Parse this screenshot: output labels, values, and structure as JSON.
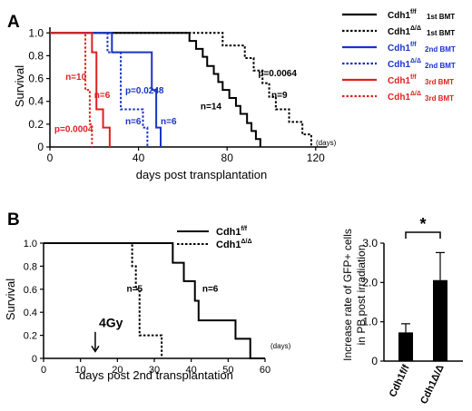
{
  "panel_labels": {
    "a": "A",
    "b": "B"
  },
  "chart_data": [
    {
      "panel": "A",
      "type": "line",
      "step": true,
      "ylabel": "Survival",
      "xlabel": "days post transplantation",
      "x_unit": "(days)",
      "xlim": [
        0,
        125
      ],
      "ylim": [
        0,
        1.05
      ],
      "xticks": [
        0,
        40,
        80,
        120
      ],
      "xtick_labels": [
        "0",
        "40",
        "80",
        "120"
      ],
      "yticks": [
        0,
        0.2,
        0.4,
        0.6,
        0.8,
        1.0
      ],
      "ytick_labels": [
        "0",
        "0.2",
        "0.4",
        "0.6",
        "0.8",
        "1.0"
      ],
      "legend_position": "top-right",
      "series": [
        {
          "name": "Cdh1f/f 1st BMT",
          "color": "#000000",
          "dash": "solid",
          "n": 14,
          "x": [
            0,
            63,
            66,
            69,
            71,
            74,
            76,
            78,
            81,
            84,
            86,
            89,
            91,
            93,
            95
          ],
          "y": [
            1.0,
            0.93,
            0.86,
            0.79,
            0.71,
            0.64,
            0.57,
            0.5,
            0.43,
            0.36,
            0.29,
            0.21,
            0.14,
            0.07,
            0.0
          ]
        },
        {
          "name": "Cdh1Δ/Δ 1st BMT",
          "color": "#000000",
          "dash": "dotted",
          "n": 9,
          "x": [
            0,
            78,
            88,
            92,
            96,
            99,
            102,
            108,
            114,
            118
          ],
          "y": [
            1.0,
            0.89,
            0.78,
            0.67,
            0.56,
            0.44,
            0.33,
            0.22,
            0.11,
            0.0
          ]
        },
        {
          "name": "Cdh1f/f 2nd BMT",
          "color": "#1a33c8",
          "dash": "solid",
          "n": 6,
          "x": [
            0,
            28,
            46,
            48,
            50
          ],
          "y": [
            1.0,
            0.83,
            0.5,
            0.17,
            0.0
          ]
        },
        {
          "name": "Cdh1Δ/Δ 2nd BMT",
          "color": "#1a33c8",
          "dash": "dotted",
          "n": 6,
          "x": [
            0,
            26,
            32,
            42,
            44
          ],
          "y": [
            1.0,
            0.83,
            0.33,
            0.17,
            0.0
          ]
        },
        {
          "name": "Cdh1f/f 3rd BMT",
          "color": "#e02020",
          "dash": "solid",
          "n": 6,
          "x": [
            0,
            19,
            21,
            24,
            27
          ],
          "y": [
            1.0,
            0.83,
            0.33,
            0.17,
            0.0
          ]
        },
        {
          "name": "Cdh1Δ/Δ 3rd BMT",
          "color": "#e02020",
          "dash": "dotted",
          "n": 10,
          "x": [
            0,
            16,
            18,
            19
          ],
          "y": [
            1.0,
            0.5,
            0.2,
            0.0
          ]
        }
      ],
      "annotations": [
        {
          "text": "n=14",
          "color": "#000000",
          "x": 68,
          "y": 0.33
        },
        {
          "text": "n=9",
          "color": "#000000",
          "x": 100,
          "y": 0.43
        },
        {
          "text": "p=0.0064",
          "color": "#000000",
          "x": 94,
          "y": 0.62
        },
        {
          "text": "p=0.0248",
          "color": "#1a33c8",
          "x": 34,
          "y": 0.47
        },
        {
          "text": "n=6",
          "color": "#1a33c8",
          "x": 34,
          "y": 0.2
        },
        {
          "text": "n=6",
          "color": "#1a33c8",
          "x": 50,
          "y": 0.2
        },
        {
          "text": "n=10",
          "color": "#e02020",
          "x": 7,
          "y": 0.59
        },
        {
          "text": "n=6",
          "color": "#e02020",
          "x": 20,
          "y": 0.43
        },
        {
          "text": "p=0.0004",
          "color": "#e02020",
          "x": 2,
          "y": 0.13
        }
      ]
    },
    {
      "panel": "B-left",
      "type": "line",
      "step": true,
      "ylabel": "Survival",
      "xlabel": "days post 2nd transplantation",
      "x_unit": "(days)",
      "xlim": [
        0,
        60
      ],
      "ylim": [
        0,
        1.0
      ],
      "xticks": [
        0,
        10,
        20,
        30,
        40,
        50,
        60
      ],
      "xtick_labels": [
        "0",
        "10",
        "20",
        "30",
        "40",
        "50",
        "60"
      ],
      "yticks": [
        0,
        0.2,
        0.4,
        0.6,
        0.8,
        1.0
      ],
      "ytick_labels": [
        "0",
        "0.2",
        "0.4",
        "0.6",
        "0.8",
        "1.0"
      ],
      "legend_position": "top-right",
      "series": [
        {
          "name": "Cdh1f/f",
          "color": "#000000",
          "dash": "solid",
          "n": 6,
          "x": [
            0,
            35,
            38,
            41,
            42,
            52,
            56,
            60
          ],
          "y": [
            1.0,
            0.83,
            0.67,
            0.5,
            0.33,
            0.17,
            0.0,
            0.0
          ]
        },
        {
          "name": "Cdh1Δ/Δ",
          "color": "#000000",
          "dash": "dotted",
          "n": 5,
          "x": [
            0,
            24,
            25,
            26,
            32
          ],
          "y": [
            1.0,
            0.8,
            0.6,
            0.2,
            0.0
          ]
        }
      ],
      "annotations": [
        {
          "text": "n=5",
          "x": 22.5,
          "y": 0.58
        },
        {
          "text": "n=6",
          "x": 43,
          "y": 0.58
        },
        {
          "text": "4Gy",
          "x": 15,
          "y": 0.27
        }
      ],
      "arrow_x": 14
    },
    {
      "panel": "B-right",
      "type": "bar",
      "ylabel_lines": [
        "Increase rate of GFP+ cells",
        "in PB post irradiation"
      ],
      "categories": [
        "Cdh1f/f",
        "Cdh1Δ/Δ"
      ],
      "values": [
        0.73,
        2.06
      ],
      "errors": [
        0.22,
        0.7
      ],
      "ylim": [
        0,
        3.0
      ],
      "yticks": [
        0,
        1.0,
        2.0,
        3.0
      ],
      "ytick_labels": [
        "0",
        "1.0",
        "2.0",
        "3.0"
      ],
      "significance": "*"
    }
  ]
}
